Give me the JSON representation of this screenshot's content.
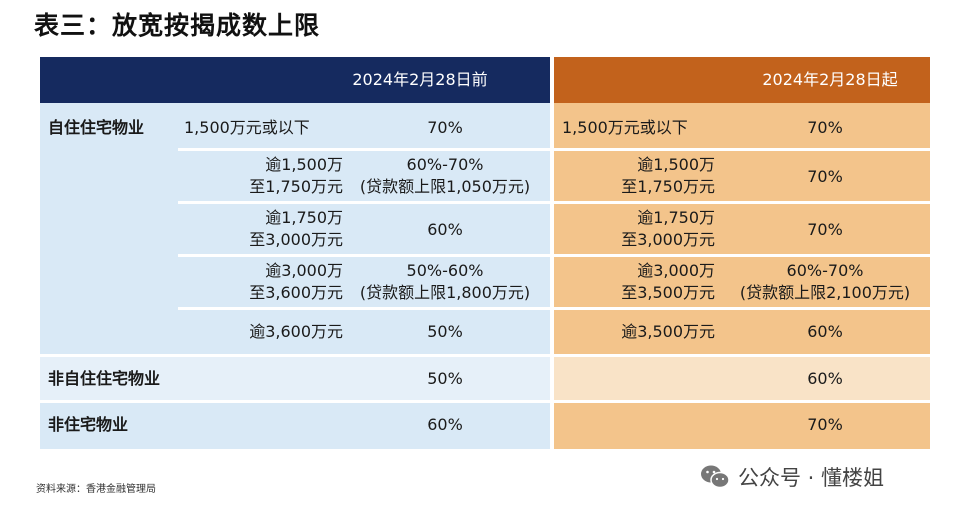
{
  "title": "表三：放宽按揭成数上限",
  "headers": {
    "before": "2024年2月28日前",
    "after": "2024年2月28日起"
  },
  "rows": [
    {
      "category": "自住住宅物业",
      "before_range": "1,500万元或以下",
      "before_value": "70%",
      "after_range": "1,500万元或以下",
      "after_value": "70%"
    },
    {
      "category": "",
      "before_range": "逾1,500万\n至1,750万元",
      "before_value": "60%-70%\n(贷款额上限1,050万元)",
      "after_range": "逾1,500万\n至1,750万元",
      "after_value": "70%"
    },
    {
      "category": "",
      "before_range": "逾1,750万\n至3,000万元",
      "before_value": "60%",
      "after_range": "逾1,750万\n至3,000万元",
      "after_value": "70%"
    },
    {
      "category": "",
      "before_range": "逾3,000万\n至3,600万元",
      "before_value": "50%-60%\n(贷款额上限1,800万元)",
      "after_range": "逾3,000万\n至3,500万元",
      "after_value": "60%-70%\n(贷款额上限2,100万元)"
    },
    {
      "category": "",
      "before_range": "逾3,600万元",
      "before_value": "50%",
      "after_range": "逾3,500万元",
      "after_value": "60%"
    },
    {
      "category": "非自住住宅物业",
      "before_range": "",
      "before_value": "50%",
      "after_range": "",
      "after_value": "60%"
    },
    {
      "category": "非住宅物业",
      "before_range": "",
      "before_value": "60%",
      "after_range": "",
      "after_value": "70%"
    }
  ],
  "source": "资料来源：香港金融管理局",
  "watermark": "公众号 · 懂楼姐",
  "colors": {
    "header_left": "#152a5f",
    "header_right": "#c2621c",
    "body_left": "#d9e9f6",
    "body_right": "#f3c48b"
  }
}
